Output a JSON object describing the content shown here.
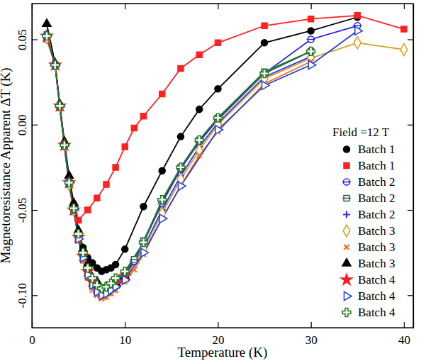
{
  "chart_data": {
    "type": "line",
    "x_label": "Temperature (K)",
    "y_label": "Magnetoresistance Apparent ΔT (K)",
    "legend_title": "Field =12 T",
    "xlim": [
      0,
      41
    ],
    "ylim": [
      -0.119,
      0.071
    ],
    "xticks": [
      0,
      10,
      20,
      30,
      40
    ],
    "yticks": [
      {
        "value": -0.1,
        "label": "-0.10"
      },
      -0.05,
      {
        "value": 0,
        "label": "0.00"
      },
      0.05
    ],
    "grid": false,
    "legend": "lower right",
    "line_style": "solid",
    "series": [
      {
        "name": "Batch 1",
        "color": "#000000",
        "marker": "circle",
        "x": [
          1.6,
          2.5,
          3,
          3.5,
          4,
          4.5,
          5,
          5.5,
          6,
          6.5,
          7,
          7.5,
          8,
          8.5,
          9,
          10,
          12,
          14,
          16,
          18,
          20,
          25,
          30,
          35
        ],
        "values": [
          0.051,
          0.035,
          0.011,
          -0.012,
          -0.035,
          -0.05,
          -0.063,
          -0.072,
          -0.078,
          -0.081,
          -0.084,
          -0.086,
          -0.085,
          -0.084,
          -0.082,
          -0.073,
          -0.048,
          -0.027,
          -0.007,
          0.009,
          0.021,
          0.048,
          0.055,
          0.063
        ]
      },
      {
        "name": "Batch 1",
        "color": "#ff2020",
        "marker": "square",
        "x": [
          1.6,
          2.5,
          3,
          3.5,
          4,
          4.5,
          5,
          6,
          7,
          8,
          9,
          10,
          11,
          12,
          14,
          16,
          18,
          20,
          25,
          30,
          35,
          40
        ],
        "values": [
          0.05,
          0.035,
          0.01,
          -0.012,
          -0.033,
          -0.047,
          -0.056,
          -0.05,
          -0.043,
          -0.035,
          -0.025,
          -0.013,
          -0.002,
          0.005,
          0.018,
          0.033,
          0.041,
          0.048,
          0.058,
          0.062,
          0.064,
          0.056
        ]
      },
      {
        "name": "Batch 2",
        "color": "#2020e0",
        "marker": "open-circle-bar",
        "x": [
          1.6,
          2.5,
          3,
          3.5,
          4,
          4.5,
          5,
          5.5,
          6,
          6.5,
          7,
          7.5,
          8,
          8.5,
          9,
          10,
          11,
          12,
          14,
          16,
          18,
          20,
          25,
          30,
          35
        ],
        "values": [
          0.052,
          0.035,
          0.011,
          -0.012,
          -0.034,
          -0.05,
          -0.066,
          -0.077,
          -0.086,
          -0.092,
          -0.096,
          -0.098,
          -0.097,
          -0.095,
          -0.093,
          -0.088,
          -0.08,
          -0.069,
          -0.046,
          -0.026,
          -0.01,
          0.003,
          0.03,
          0.05,
          0.058
        ]
      },
      {
        "name": "Batch 2",
        "color": "#2f5f5f",
        "marker": "open-square-bar",
        "x": [
          1.6,
          2.5,
          3,
          3.5,
          4,
          4.5,
          5,
          5.5,
          6,
          6.5,
          7,
          7.5,
          8,
          8.5,
          9,
          10,
          11,
          12,
          14,
          16,
          18,
          20,
          25,
          30
        ],
        "values": [
          0.052,
          0.035,
          0.011,
          -0.012,
          -0.034,
          -0.05,
          -0.065,
          -0.076,
          -0.085,
          -0.091,
          -0.094,
          -0.096,
          -0.096,
          -0.094,
          -0.091,
          -0.087,
          -0.079,
          -0.068,
          -0.045,
          -0.025,
          -0.009,
          0.004,
          0.031,
          0.043
        ]
      },
      {
        "name": "Batch 2",
        "color": "#3030ff",
        "marker": "plus",
        "x": [
          1.6,
          2.5,
          3,
          3.5,
          4,
          4.5,
          5,
          5.5,
          6,
          6.5,
          7,
          7.5,
          8,
          8.5,
          9,
          10,
          12,
          14,
          16,
          18,
          20,
          25,
          30
        ],
        "values": [
          0.051,
          0.035,
          0.01,
          -0.013,
          -0.035,
          -0.05,
          -0.067,
          -0.078,
          -0.087,
          -0.093,
          -0.097,
          -0.099,
          -0.098,
          -0.096,
          -0.094,
          -0.09,
          -0.072,
          -0.05,
          -0.03,
          -0.013,
          0.001,
          0.028,
          0.04
        ]
      },
      {
        "name": "Batch 3",
        "color": "#d4a017",
        "marker": "open-diamond",
        "x": [
          1.6,
          2.5,
          3,
          3.5,
          4,
          4.5,
          5,
          5.5,
          6,
          6.5,
          7,
          7.5,
          8,
          8.5,
          9,
          10,
          12,
          14,
          16,
          18,
          20,
          25,
          30,
          35,
          40
        ],
        "values": [
          0.051,
          0.035,
          0.011,
          -0.012,
          -0.035,
          -0.05,
          -0.066,
          -0.078,
          -0.087,
          -0.093,
          -0.097,
          -0.099,
          -0.099,
          -0.097,
          -0.095,
          -0.09,
          -0.073,
          -0.052,
          -0.032,
          -0.015,
          0,
          0.027,
          0.039,
          0.048,
          0.044
        ]
      },
      {
        "name": "Batch 3",
        "color": "#ff6a1a",
        "marker": "x",
        "x": [
          1.6,
          2.5,
          3,
          3.5,
          4,
          4.5,
          5,
          5.5,
          6,
          6.5,
          7,
          7.5,
          8,
          8.5,
          9,
          10,
          11,
          12,
          14,
          16,
          18,
          20,
          25,
          30
        ],
        "values": [
          0.051,
          0.035,
          0.011,
          -0.012,
          -0.035,
          -0.051,
          -0.067,
          -0.08,
          -0.09,
          -0.097,
          -0.1,
          -0.102,
          -0.101,
          -0.099,
          -0.097,
          -0.092,
          -0.085,
          -0.076,
          -0.055,
          -0.036,
          -0.018,
          -0.004,
          0.024,
          0.037
        ]
      },
      {
        "name": "Batch 3",
        "color": "#000000",
        "marker": "triangle",
        "x": [
          1.6,
          2.5,
          3,
          3.5,
          4,
          4.5,
          5,
          5.5,
          6,
          7,
          8,
          9,
          10
        ],
        "values": [
          0.059,
          0.036,
          0.012,
          -0.01,
          -0.03,
          -0.046,
          -0.062,
          -0.073,
          -0.082,
          -0.092,
          -0.095,
          -0.093,
          -0.089
        ]
      },
      {
        "name": "Batch 4",
        "color": "#ff1a1a",
        "marker": "star",
        "x": [
          1.6,
          2.5,
          3,
          3.5,
          4,
          4.5,
          5,
          5.5,
          6,
          6.5,
          7,
          7.5,
          8,
          9,
          10
        ],
        "values": [
          0.052,
          0.035,
          0.011,
          -0.012,
          -0.034,
          -0.05,
          -0.066,
          -0.077,
          -0.086,
          -0.092,
          -0.096,
          -0.098,
          -0.097,
          -0.093,
          -0.089
        ]
      },
      {
        "name": "Batch 4",
        "color": "#2040e0",
        "marker": "open-triangle-right",
        "x": [
          1.6,
          2.5,
          3,
          3.5,
          4,
          4.5,
          5,
          5.5,
          6,
          6.5,
          7,
          7.5,
          8,
          8.5,
          9,
          10,
          12,
          14,
          16,
          20,
          25,
          30,
          35
        ],
        "values": [
          0.052,
          0.035,
          0.011,
          -0.012,
          -0.034,
          -0.05,
          -0.067,
          -0.078,
          -0.088,
          -0.094,
          -0.098,
          -0.1,
          -0.099,
          -0.097,
          -0.095,
          -0.091,
          -0.075,
          -0.055,
          -0.036,
          -0.003,
          0.023,
          0.035,
          0.055
        ]
      },
      {
        "name": "Batch 4",
        "color": "#1f7a1f",
        "marker": "open-cross",
        "x": [
          1.6,
          2.5,
          3,
          3.5,
          4,
          4.5,
          5,
          5.5,
          6,
          6.5,
          7,
          7.5,
          8,
          8.5,
          9,
          10,
          12,
          14,
          16,
          18,
          20,
          25,
          30
        ],
        "values": [
          0.052,
          0.035,
          0.011,
          -0.012,
          -0.034,
          -0.049,
          -0.064,
          -0.075,
          -0.084,
          -0.09,
          -0.094,
          -0.096,
          -0.095,
          -0.093,
          -0.09,
          -0.086,
          -0.069,
          -0.044,
          -0.025,
          -0.009,
          0.004,
          0.03,
          0.043
        ]
      }
    ]
  }
}
